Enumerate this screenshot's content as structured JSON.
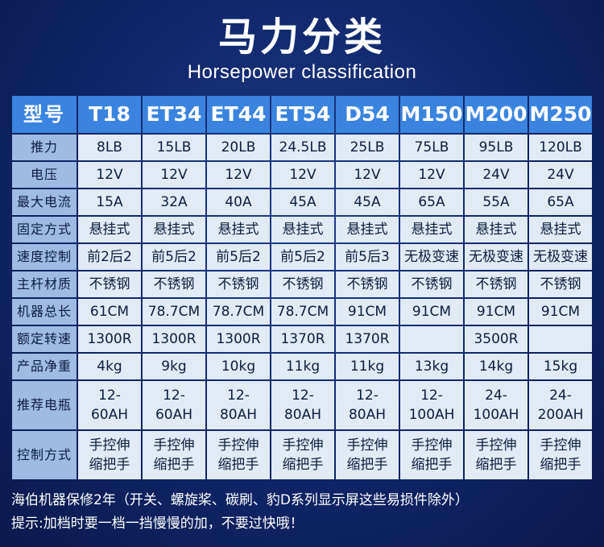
{
  "header": {
    "title": "马力分类",
    "subtitle": "Horsepower classification"
  },
  "table": {
    "corner_label": "型号",
    "models": [
      "T18",
      "ET34",
      "ET44",
      "ET54",
      "D54",
      "M150",
      "M200",
      "M250"
    ],
    "rows": [
      {
        "label": "推力",
        "values": [
          "8LB",
          "15LB",
          "20LB",
          "24.5LB",
          "25LB",
          "75LB",
          "95LB",
          "120LB"
        ]
      },
      {
        "label": "电压",
        "values": [
          "12V",
          "12V",
          "12V",
          "12V",
          "12V",
          "12V",
          "24V",
          "24V"
        ]
      },
      {
        "label": "最大电流",
        "values": [
          "15A",
          "32A",
          "40A",
          "45A",
          "45A",
          "65A",
          "55A",
          "65A"
        ]
      },
      {
        "label": "固定方式",
        "values": [
          "悬挂式",
          "悬挂式",
          "悬挂式",
          "悬挂式",
          "悬挂式",
          "悬挂式",
          "悬挂式",
          "悬挂式"
        ]
      },
      {
        "label": "速度控制",
        "values": [
          "前2后2",
          "前5后2",
          "前5后2",
          "前5后2",
          "前5后3",
          "无极变速",
          "无极变速",
          "无极变速"
        ]
      },
      {
        "label": "主杆材质",
        "values": [
          "不锈钢",
          "不锈钢",
          "不锈钢",
          "不锈钢",
          "不锈钢",
          "不锈钢",
          "不锈钢",
          "不锈钢"
        ]
      },
      {
        "label": "机器总长",
        "values": [
          "61CM",
          "78.7CM",
          "78.7CM",
          "78.7CM",
          "91CM",
          "91CM",
          "91CM",
          "91CM"
        ]
      },
      {
        "label": "额定转速",
        "values": [
          "1300R",
          "1300R",
          "1300R",
          "1370R",
          "1370R",
          "",
          "3500R",
          ""
        ]
      },
      {
        "label": "产品净重",
        "values": [
          "4kg",
          "9kg",
          "10kg",
          "11kg",
          "11kg",
          "13kg",
          "14kg",
          "15kg"
        ]
      },
      {
        "label": "推荐电瓶",
        "values": [
          [
            "12-",
            "60AH"
          ],
          [
            "12-",
            "60AH"
          ],
          [
            "12-",
            "80AH"
          ],
          [
            "12-",
            "80AH"
          ],
          [
            "12-",
            "80AH"
          ],
          [
            "12-",
            "100AH"
          ],
          [
            "24-",
            "100AH"
          ],
          [
            "24-",
            "200AH"
          ]
        ]
      },
      {
        "label": "控制方式",
        "values": [
          [
            "手控伸",
            "缩把手"
          ],
          [
            "手控伸",
            "缩把手"
          ],
          [
            "手控伸",
            "缩把手"
          ],
          [
            "手控伸",
            "缩把手"
          ],
          [
            "手控伸",
            "缩把手"
          ],
          [
            "手控伸",
            "缩把手"
          ],
          [
            "手控伸",
            "缩把手"
          ],
          [
            "手控伸",
            "缩把手"
          ]
        ]
      }
    ]
  },
  "notes": {
    "warranty": "海伯机器保修2年（开关、螺旋桨、碳刷、豹D系列显示屏这些易损件除外）",
    "tip": "提示:加档时要一档一挡慢慢的加，不要过快哦！"
  }
}
